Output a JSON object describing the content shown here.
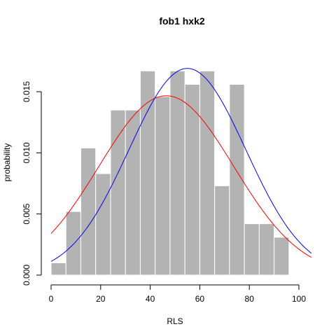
{
  "chart_data": {
    "type": "bar",
    "title": "fob1 hxk2",
    "xlabel": "RLS",
    "ylabel": "probability",
    "xlim": [
      0,
      105
    ],
    "ylim": [
      0,
      0.017
    ],
    "x_ticks": [
      "0",
      "20",
      "40",
      "60",
      "80",
      "100"
    ],
    "y_ticks": [
      "0.000",
      "0.005",
      "0.010",
      "0.015"
    ],
    "grid": false,
    "bar_color": "#b3b3b3",
    "bar_edge_color": "#ffffff",
    "bin_width": 6,
    "bin_starts": [
      0,
      6,
      12,
      18,
      24,
      30,
      36,
      42,
      48,
      54,
      60,
      66,
      72,
      78,
      84,
      90
    ],
    "values": [
      0.001,
      0.0052,
      0.0104,
      0.0083,
      0.0135,
      0.0135,
      0.0167,
      0.0146,
      0.0167,
      0.0156,
      0.0167,
      0.0073,
      0.0156,
      0.0042,
      0.0042,
      0.0031
    ],
    "curves": [
      {
        "color": "#ff0000",
        "mean": 46.5,
        "sd": 27.2
      },
      {
        "color": "#0000ff",
        "mean": 55,
        "sd": 23.6
      }
    ]
  }
}
